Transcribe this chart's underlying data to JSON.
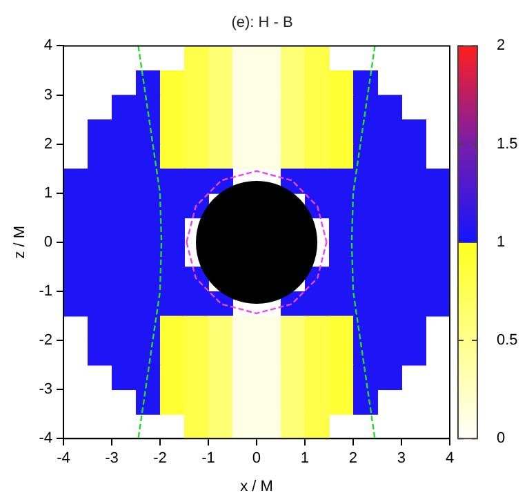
{
  "chart_data": {
    "type": "heatmap",
    "title": "(e): H - B",
    "xlabel": "x / M",
    "ylabel": "z / M",
    "x": [
      -3.75,
      -3.25,
      -2.75,
      -2.25,
      -1.75,
      -1.25,
      -0.75,
      -0.25,
      0.25,
      0.75,
      1.25,
      1.75,
      2.25,
      2.75,
      3.25,
      3.75
    ],
    "y": [
      3.75,
      3.25,
      2.75,
      2.25,
      1.75,
      1.25,
      0.75,
      0.25,
      -0.25,
      -0.75,
      -1.25,
      -1.75,
      -2.25,
      -2.75,
      -3.25,
      -3.75
    ],
    "cells": [
      [
        null,
        null,
        null,
        null,
        null,
        0.8,
        0.6,
        0.1,
        0.1,
        0.6,
        0.8,
        null,
        null,
        null,
        null,
        null
      ],
      [
        null,
        null,
        null,
        1.05,
        0.9,
        0.8,
        0.6,
        0.1,
        0.1,
        0.6,
        0.8,
        0.9,
        1.05,
        null,
        null,
        null
      ],
      [
        null,
        null,
        1.05,
        1.05,
        0.9,
        0.8,
        0.6,
        0.1,
        0.1,
        0.6,
        0.8,
        0.9,
        1.05,
        1.05,
        null,
        null
      ],
      [
        null,
        1.05,
        1.05,
        1.05,
        0.9,
        0.8,
        0.6,
        0.1,
        0.1,
        0.6,
        0.8,
        0.9,
        1.05,
        1.05,
        1.05,
        null
      ],
      [
        null,
        1.05,
        1.05,
        1.05,
        0.9,
        0.8,
        0.6,
        0.1,
        0.1,
        0.6,
        0.8,
        0.9,
        1.05,
        1.05,
        1.05,
        null
      ],
      [
        1.05,
        1.05,
        1.05,
        1.05,
        1.05,
        1.05,
        1.05,
        null,
        null,
        1.05,
        1.05,
        1.05,
        1.05,
        1.05,
        1.05,
        1.05
      ],
      [
        1.05,
        1.05,
        1.05,
        1.05,
        1.05,
        1.05,
        null,
        null,
        null,
        null,
        1.05,
        1.05,
        1.05,
        1.05,
        1.05,
        1.05
      ],
      [
        1.05,
        1.05,
        1.05,
        1.05,
        1.05,
        null,
        null,
        null,
        null,
        null,
        null,
        1.05,
        1.05,
        1.05,
        1.05,
        1.05
      ],
      [
        1.05,
        1.05,
        1.05,
        1.05,
        1.05,
        null,
        null,
        null,
        null,
        null,
        null,
        1.05,
        1.05,
        1.05,
        1.05,
        1.05
      ],
      [
        1.05,
        1.05,
        1.05,
        1.05,
        1.05,
        1.05,
        null,
        null,
        null,
        null,
        1.05,
        1.05,
        1.05,
        1.05,
        1.05,
        1.05
      ],
      [
        1.05,
        1.05,
        1.05,
        1.05,
        1.05,
        1.05,
        1.05,
        null,
        null,
        1.05,
        1.05,
        1.05,
        1.05,
        1.05,
        1.05,
        1.05
      ],
      [
        null,
        1.05,
        1.05,
        1.05,
        0.9,
        0.8,
        0.6,
        0.1,
        0.1,
        0.6,
        0.8,
        0.9,
        1.05,
        1.05,
        1.05,
        null
      ],
      [
        null,
        1.05,
        1.05,
        1.05,
        0.9,
        0.8,
        0.6,
        0.1,
        0.1,
        0.6,
        0.8,
        0.9,
        1.05,
        1.05,
        1.05,
        null
      ],
      [
        null,
        null,
        1.05,
        1.05,
        0.9,
        0.8,
        0.6,
        0.1,
        0.1,
        0.6,
        0.8,
        0.9,
        1.05,
        1.05,
        null,
        null
      ],
      [
        null,
        null,
        null,
        1.05,
        0.9,
        0.8,
        0.6,
        0.1,
        0.1,
        0.6,
        0.8,
        0.9,
        1.05,
        null,
        null,
        null
      ],
      [
        null,
        null,
        null,
        null,
        null,
        0.8,
        0.6,
        0.1,
        0.1,
        0.6,
        0.8,
        null,
        null,
        null,
        null,
        null
      ]
    ],
    "clim": [
      0,
      2
    ],
    "cticks": [
      0,
      0.5,
      1,
      1.5,
      2
    ],
    "xlim": [
      -4,
      4
    ],
    "ylim": [
      -4,
      4
    ],
    "xticks": [
      -4,
      -3,
      -2,
      -1,
      0,
      1,
      2,
      3,
      4
    ],
    "yticks": [
      -4,
      -3,
      -2,
      -1,
      0,
      1,
      2,
      3,
      4
    ],
    "grid": false,
    "legend": false,
    "series": [
      {
        "type": "line",
        "color": "#22dd22",
        "line_style": "dashed",
        "x": [
          -2.45,
          -2.3,
          -2.15,
          -2.0,
          -1.97,
          -2.0,
          -2.15,
          -2.3,
          -2.45
        ],
        "values": [
          4,
          3,
          2,
          1,
          0,
          -1,
          -2,
          -3,
          -4
        ]
      },
      {
        "type": "line",
        "color": "#22dd22",
        "line_style": "dashed",
        "x": [
          2.45,
          2.3,
          2.15,
          2.0,
          1.97,
          2.0,
          2.15,
          2.3,
          2.45
        ],
        "values": [
          4,
          3,
          2,
          1,
          0,
          -1,
          -2,
          -3,
          -4
        ]
      },
      {
        "type": "line",
        "color": "#ee44ee",
        "line_style": "dashed",
        "x": [
          -1.45,
          -1.26,
          -0.73,
          0,
          0.73,
          1.26,
          1.45
        ],
        "values": [
          0,
          0.73,
          1.26,
          1.45,
          1.26,
          0.73,
          0
        ]
      },
      {
        "type": "line",
        "color": "#ee44ee",
        "line_style": "dashed",
        "x": [
          -1.45,
          -1.26,
          -0.73,
          0,
          0.73,
          1.26,
          1.45
        ],
        "values": [
          0,
          -0.73,
          -1.26,
          -1.45,
          -1.26,
          -0.73,
          0
        ]
      }
    ]
  }
}
